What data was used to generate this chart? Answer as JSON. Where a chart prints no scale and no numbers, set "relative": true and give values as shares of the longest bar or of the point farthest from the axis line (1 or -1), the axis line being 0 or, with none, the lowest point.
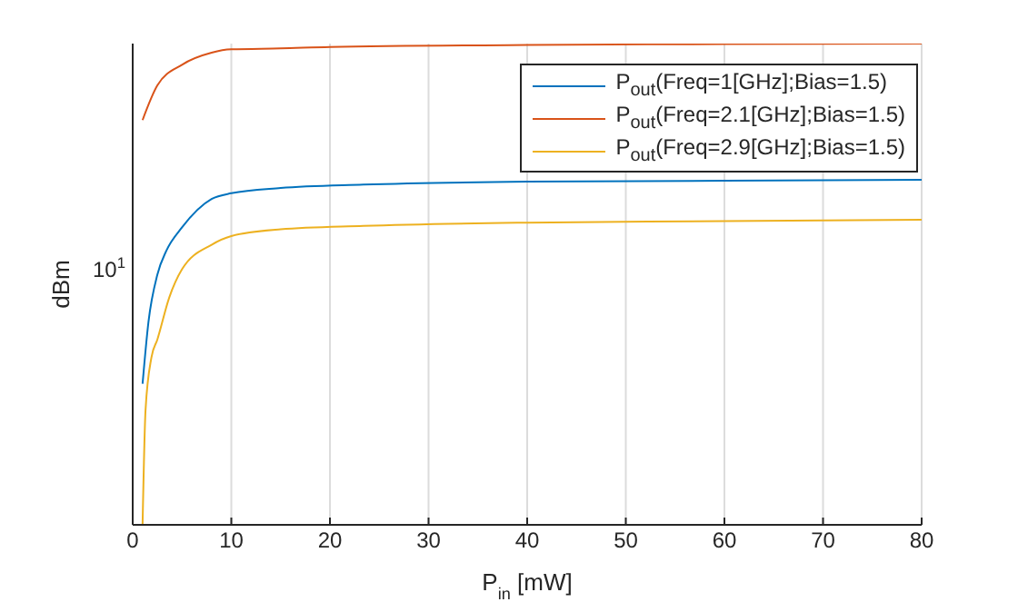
{
  "chart_data": {
    "type": "line",
    "xlabel": "P$_{in}$ [mW]",
    "ylabel": "dBm",
    "relative": true,
    "grid": "x",
    "legend": "top right",
    "marker": "none",
    "line_style": "solid",
    "xlim": [
      0,
      80
    ],
    "xticks": [
      0,
      10,
      20,
      30,
      40,
      50,
      60,
      70,
      80
    ],
    "annotations": [
      "10$^{1}$"
    ],
    "series": [
      {
        "name": "P$_{out}$(Freq=1[GHz];Bias=1.5)",
        "color": "#0072bd",
        "x": [
          1,
          1.6,
          2.5,
          3.4,
          5,
          8,
          10,
          15,
          23.4,
          40,
          60,
          80
        ],
        "values": [
          0.293,
          0.422,
          0.52,
          0.569,
          0.618,
          0.677,
          0.689,
          0.7,
          0.707,
          0.713,
          0.715,
          0.717
        ]
      },
      {
        "name": "P$_{out}$(Freq=2.1[GHz];Bias=1.5)",
        "color": "#d95319",
        "x": [
          1,
          2.5,
          5,
          8,
          10,
          15,
          20,
          40,
          60,
          80
        ],
        "values": [
          0.841,
          0.913,
          0.956,
          0.981,
          0.988,
          0.99,
          0.993,
          0.997,
          0.999,
          1
        ]
      },
      {
        "name": "P$_{out}$(Freq=2.9[GHz];Bias=1.5)",
        "color": "#edb120",
        "x": [
          1,
          1.3,
          1.9,
          2.5,
          3.7,
          5,
          8,
          10,
          15,
          23.4,
          40,
          60,
          80
        ],
        "values": [
          0,
          0.238,
          0.348,
          0.385,
          0.472,
          0.531,
          0.582,
          0.6,
          0.614,
          0.621,
          0.628,
          0.631,
          0.634
        ]
      }
    ]
  }
}
